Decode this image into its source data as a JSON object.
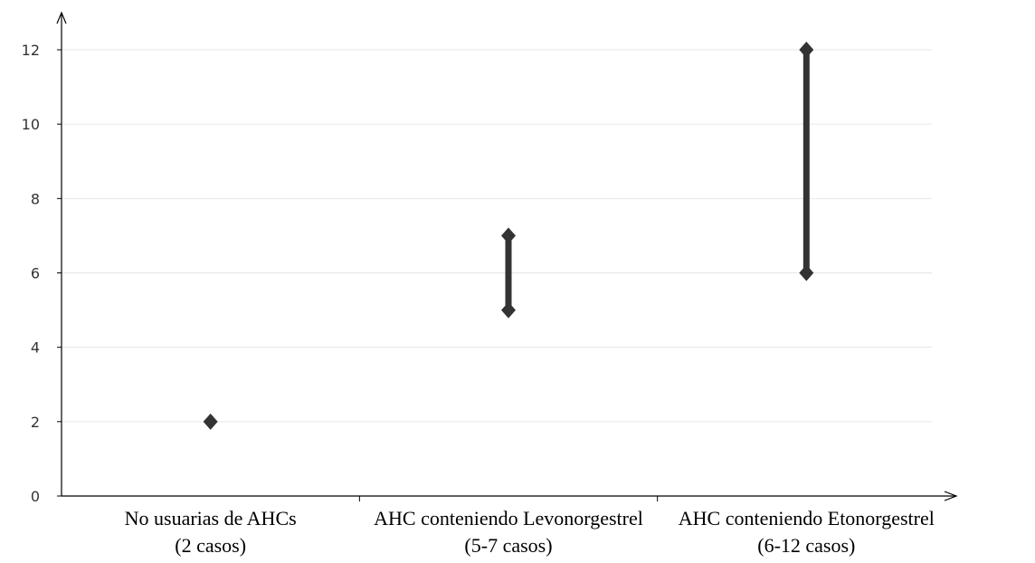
{
  "chart_data": {
    "type": "range",
    "title": "",
    "xlabel": "",
    "ylabel": "",
    "ylim": [
      0,
      12
    ],
    "yticks": [
      "0",
      "2",
      "4",
      "6",
      "8",
      "10",
      "12"
    ],
    "grid": true,
    "categories": [
      {
        "line1": "No usuarias de AHCs",
        "line2": "(2 casos)"
      },
      {
        "line1": "AHC conteniendo Levonorgestrel",
        "line2": "(5-7 casos)"
      },
      {
        "line1": "AHC conteniendo Etonorgestrel",
        "line2": "(6-12 casos)"
      }
    ],
    "ranges": [
      {
        "low": 2,
        "high": 2
      },
      {
        "low": 5,
        "high": 7
      },
      {
        "low": 6,
        "high": 12
      }
    ],
    "colors": {
      "marker": "#333333",
      "grid": "#e6e6e6",
      "axis": "#000000"
    }
  }
}
